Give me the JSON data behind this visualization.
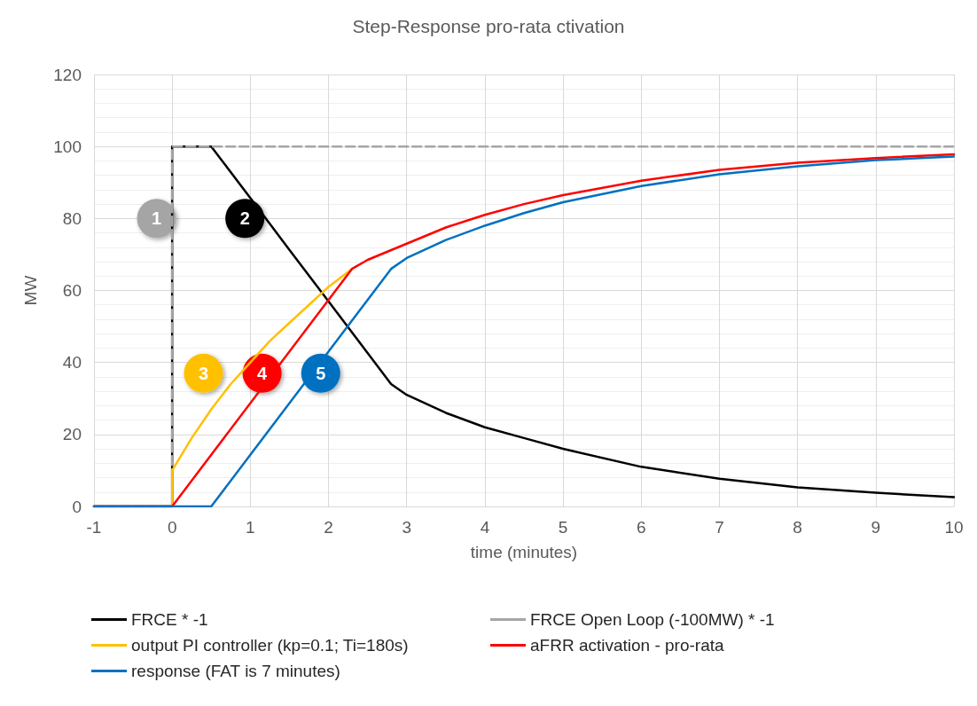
{
  "chart_data": {
    "type": "line",
    "title": "Step-Response pro-rata ctivation",
    "xlabel": "time (minutes)",
    "ylabel": "MW",
    "xlim": [
      -1,
      10
    ],
    "xticks": [
      -1,
      0,
      1,
      2,
      3,
      4,
      5,
      6,
      7,
      8,
      9,
      10
    ],
    "ylim": [
      0,
      120
    ],
    "yticks": [
      0,
      20,
      40,
      60,
      80,
      100,
      120
    ],
    "grid": true,
    "legend": "bottom",
    "marker": "none",
    "series": [
      {
        "name": "FRCE * -1",
        "color": "#000000",
        "x": [
          -1,
          0,
          0,
          0.5,
          1,
          1.5,
          2,
          2.5,
          2.8,
          3,
          3.5,
          4,
          4.5,
          5,
          6,
          7,
          8,
          9,
          10
        ],
        "values": [
          0,
          0,
          100,
          100,
          85.7,
          71.3,
          57,
          42.6,
          34,
          31,
          26,
          22,
          19,
          16,
          11,
          7.7,
          5.3,
          3.8,
          2.6
        ]
      },
      {
        "name": "FRCE Open Loop (-100MW) * -1",
        "color": "#a5a5a5",
        "line_style": "dashed",
        "x": [
          -1,
          0,
          0,
          10
        ],
        "values": [
          0,
          0,
          100,
          100
        ]
      },
      {
        "name": "output PI controller (kp=0.1; Ti=180s)",
        "color": "#ffc000",
        "x": [
          0,
          0,
          0.25,
          0.5,
          0.75,
          1,
          1.25,
          1.5,
          1.75,
          2,
          2.3
        ],
        "values": [
          0,
          10,
          19,
          27,
          34,
          40,
          46,
          51,
          56,
          61,
          66
        ]
      },
      {
        "name": "aFRR activation - pro-rata",
        "color": "#ff0000",
        "x": [
          -1,
          0,
          2.3,
          2.5,
          3,
          3.5,
          4,
          4.5,
          5,
          6,
          7,
          8,
          9,
          10
        ],
        "values": [
          0,
          0,
          66,
          68.5,
          73,
          77.5,
          81,
          84,
          86.5,
          90.5,
          93.5,
          95.5,
          96.8,
          97.8
        ]
      },
      {
        "name": "response (FAT is 7 minutes)",
        "color": "#0070c0",
        "x": [
          -1,
          0.5,
          2.8,
          3,
          3.5,
          4,
          4.5,
          5,
          6,
          7,
          8,
          9,
          10
        ],
        "values": [
          0,
          0,
          66,
          69,
          74,
          78,
          81.5,
          84.5,
          89,
          92.3,
          94.5,
          96.2,
          97.2
        ]
      }
    ],
    "annotations": [
      {
        "text": "1",
        "x": -0.2,
        "y": 80
      },
      {
        "text": "2",
        "x": 0.93,
        "y": 80
      },
      {
        "text": "3",
        "x": 0.4,
        "y": 37
      },
      {
        "text": "4",
        "x": 1.15,
        "y": 37
      },
      {
        "text": "5",
        "x": 1.9,
        "y": 37
      }
    ]
  }
}
